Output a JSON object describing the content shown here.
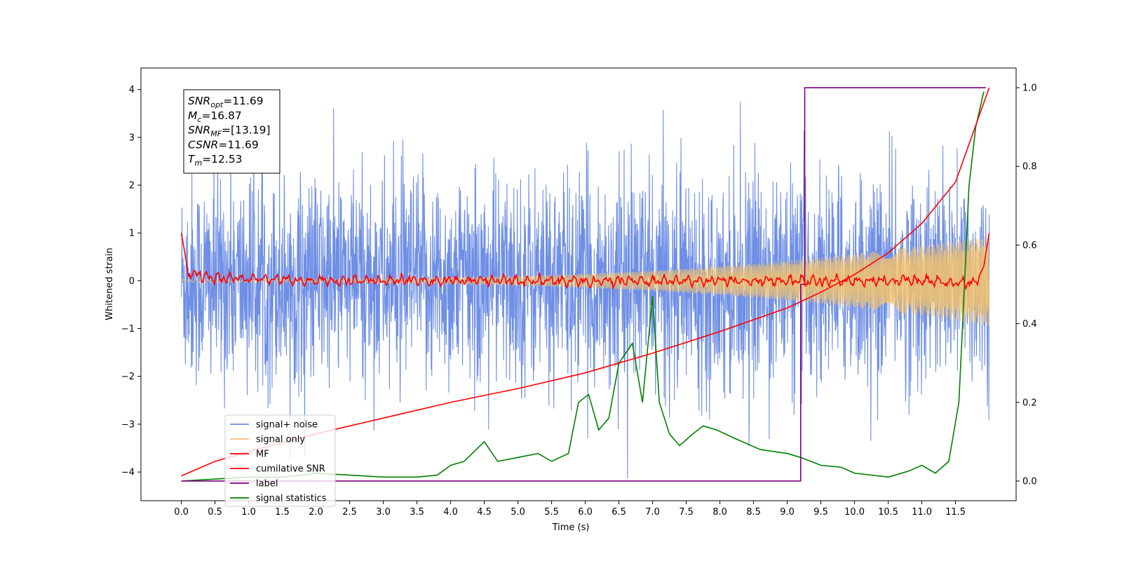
{
  "chart_data": {
    "type": "line",
    "xlabel": "Time (s)",
    "ylabel": "Whitened strain",
    "xlim": [
      -0.6,
      12.4
    ],
    "ylim": [
      -4.6,
      4.45
    ],
    "y2lim": [
      -0.05,
      1.05
    ],
    "x_ticks": [
      "0.0",
      "0.5",
      "1.0",
      "1.5",
      "2.0",
      "2.5",
      "3.0",
      "3.5",
      "4.0",
      "4.5",
      "5.0",
      "5.5",
      "6.0",
      "6.5",
      "7.0",
      "7.5",
      "8.0",
      "8.5",
      "9.0",
      "9.5",
      "10.0",
      "10.5",
      "11.0",
      "11.5"
    ],
    "y_ticks": [
      "4",
      "3",
      "2",
      "1",
      "0",
      "−1",
      "−2",
      "−3",
      "−4"
    ],
    "y2_ticks": [
      "1.0",
      "0.8",
      "0.6",
      "0.4",
      "0.2",
      "0.0"
    ],
    "annotation": [
      {
        "sym": "SNR",
        "sub": "opt",
        "value": "=11.69"
      },
      {
        "sym": "M",
        "sub": "c",
        "value": "=16.87"
      },
      {
        "sym": "SNR",
        "sub": "MF",
        "value": "=[13.19]"
      },
      {
        "sym": "CSNR",
        "sub": "",
        "value": "=11.69"
      },
      {
        "sym": "T",
        "sub": "m",
        "value": "=12.53"
      }
    ],
    "legend_position": "lower-left",
    "series": [
      {
        "name": "signal+ noise",
        "color": "#6f8fe6",
        "axis": "left",
        "noise_std": 1.1,
        "t_range": [
          0,
          12
        ]
      },
      {
        "name": "signal only",
        "color": "#f5c36b",
        "axis": "left",
        "amplitude_start": 0.03,
        "amplitude_end": 0.95
      },
      {
        "name": "MF",
        "color": "#ff0000",
        "axis": "left",
        "x": [
          0,
          0.05,
          0.1,
          0.3,
          0.6,
          1,
          2,
          3,
          4,
          5,
          6,
          7,
          8,
          9,
          10,
          11,
          11.5,
          11.8,
          11.92,
          12
        ],
        "y": [
          1.0,
          0.6,
          0.15,
          0.1,
          0.05,
          0.05,
          0.0,
          0.0,
          0.0,
          0.0,
          0.0,
          0.0,
          0.0,
          0.0,
          0.0,
          0.0,
          -0.05,
          -0.05,
          0.3,
          1.0
        ]
      },
      {
        "name": "cumilative SNR",
        "color": "#ff0000",
        "axis": "right",
        "x": [
          0,
          0.5,
          1,
          2,
          3,
          4,
          5,
          6,
          7,
          8,
          9,
          9.5,
          10,
          10.5,
          11,
          11.5,
          12
        ],
        "y": [
          0.013,
          0.05,
          0.075,
          0.12,
          0.16,
          0.2,
          0.235,
          0.275,
          0.325,
          0.38,
          0.44,
          0.48,
          0.525,
          0.58,
          0.655,
          0.76,
          1.0
        ]
      },
      {
        "name": "label",
        "color": "#800080",
        "axis": "right",
        "x": [
          0,
          9.2,
          9.2,
          9.26,
          9.26,
          11.95
        ],
        "y": [
          0.0,
          0.0,
          0.5,
          0.5,
          1.0,
          1.0
        ]
      },
      {
        "name": "signal statistics",
        "color": "#008000",
        "axis": "right",
        "x": [
          0,
          0.5,
          1,
          1.5,
          1.8,
          2,
          2.5,
          3,
          3.5,
          3.8,
          4,
          4.2,
          4.5,
          4.7,
          5,
          5.3,
          5.5,
          5.75,
          5.9,
          6.05,
          6.2,
          6.35,
          6.5,
          6.7,
          6.85,
          7.0,
          7.1,
          7.25,
          7.4,
          7.6,
          7.75,
          7.95,
          8.2,
          8.6,
          9.0,
          9.2,
          9.5,
          9.8,
          10.0,
          10.5,
          10.8,
          11.0,
          11.2,
          11.4,
          11.55,
          11.62,
          11.7,
          11.8,
          11.92
        ],
        "y": [
          0.0,
          0.005,
          0.01,
          0.01,
          0.015,
          0.02,
          0.015,
          0.01,
          0.01,
          0.015,
          0.04,
          0.05,
          0.1,
          0.05,
          0.06,
          0.07,
          0.05,
          0.07,
          0.2,
          0.22,
          0.13,
          0.16,
          0.3,
          0.35,
          0.2,
          0.47,
          0.2,
          0.12,
          0.09,
          0.12,
          0.14,
          0.13,
          0.11,
          0.08,
          0.07,
          0.06,
          0.04,
          0.035,
          0.02,
          0.01,
          0.025,
          0.04,
          0.02,
          0.05,
          0.2,
          0.45,
          0.75,
          0.9,
          0.99
        ]
      }
    ]
  }
}
